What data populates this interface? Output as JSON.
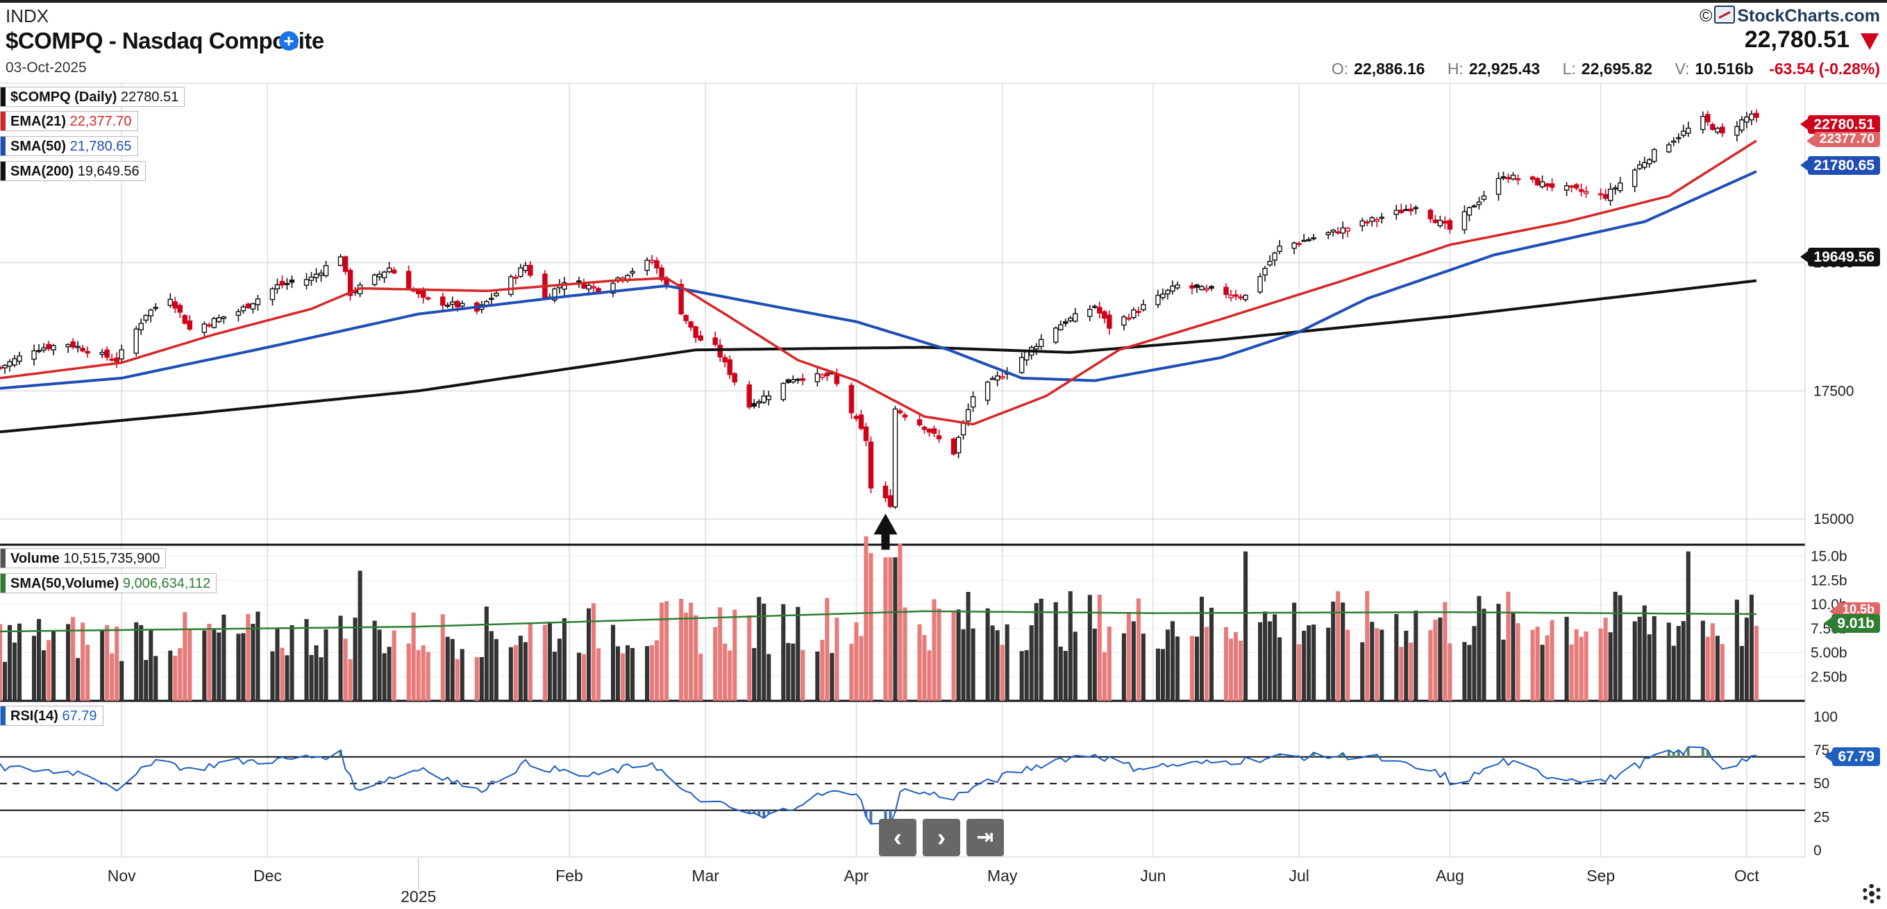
{
  "header": {
    "exchange": "INDX",
    "title": "$COMPQ - Nasdaq Composite",
    "date": "03-Oct-2025",
    "brand": "StockCharts.com",
    "copyright": "©",
    "last_price": "22,780.51",
    "ohlc": {
      "o_label": "O:",
      "o": "22,886.16",
      "h_label": "H:",
      "h": "22,925.43",
      "l_label": "L:",
      "l": "22,695.82",
      "v_label": "V:",
      "v": "10.516b",
      "change": "-63.54 (-0.28%)"
    }
  },
  "colors": {
    "up": "#111111",
    "down": "#d0021b",
    "ema": "#d62728",
    "sma50": "#1f4fb5",
    "sma200": "#111111",
    "vol_up": "#333333",
    "vol_down": "#e87a7a",
    "vol_sma": "#2e7d32",
    "rsi": "#1f5fbf",
    "rsi_fill": "#5a8a6a"
  },
  "legends": {
    "price": [
      {
        "name": "$COMPQ (Daily)",
        "value": "22780.51",
        "color": "#111111"
      },
      {
        "name": "EMA(21)",
        "value": "22,377.70",
        "color": "#d62728"
      },
      {
        "name": "SMA(50)",
        "value": "21,780.65",
        "color": "#1f4fb5"
      },
      {
        "name": "SMA(200)",
        "value": "19,649.56",
        "color": "#111111"
      }
    ],
    "volume": [
      {
        "name": "Volume",
        "value": "10,515,735,900",
        "color": "#555555"
      },
      {
        "name": "SMA(50,Volume)",
        "value": "9,006,634,112",
        "color": "#2e7d32"
      }
    ],
    "rsi": [
      {
        "name": "RSI(14)",
        "value": "67.79",
        "color": "#1f5fbf"
      }
    ]
  },
  "price_tags": {
    "last": "22780.51",
    "ema": "22377.70",
    "sma50": "21780.65",
    "sma200": "19649.56",
    "volume": "10.5b",
    "vol_sma": "9.01b",
    "rsi": "67.79"
  },
  "nav_buttons": {
    "prev": "‹",
    "next": "›",
    "end": "⇥"
  },
  "chart_data": {
    "type": "candlestick",
    "title": "$COMPQ - Nasdaq Composite",
    "x_axis": {
      "months": [
        {
          "label": "Nov",
          "date": "2024-11-01"
        },
        {
          "label": "Dec",
          "date": "2024-12-01"
        },
        {
          "label": "Feb",
          "date": "2025-02-01"
        },
        {
          "label": "Mar",
          "date": "2025-03-01"
        },
        {
          "label": "Apr",
          "date": "2025-04-01"
        },
        {
          "label": "May",
          "date": "2025-05-01"
        },
        {
          "label": "Jun",
          "date": "2025-06-01"
        },
        {
          "label": "Jul",
          "date": "2025-07-01"
        },
        {
          "label": "Aug",
          "date": "2025-08-01"
        },
        {
          "label": "Sep",
          "date": "2025-09-01"
        },
        {
          "label": "Oct",
          "date": "2025-10-01"
        }
      ],
      "year_label": "2025",
      "range": [
        "2024-10-07",
        "2025-10-13"
      ]
    },
    "price_axis": {
      "ticks": [
        15000,
        17500,
        20000
      ],
      "ylim": [
        14500,
        23500
      ]
    },
    "volume_axis": {
      "ticks": [
        "2.50b",
        "5.00b",
        "7.50b",
        "10.0b",
        "12.5b",
        "15.0b"
      ],
      "values": [
        2.5,
        5,
        7.5,
        10,
        12.5,
        15
      ],
      "ylim": [
        0,
        16.2
      ]
    },
    "rsi_axis": {
      "ticks": [
        0,
        25,
        50,
        75,
        100
      ],
      "ylim": [
        -5,
        112
      ],
      "levels": [
        30,
        50,
        70
      ]
    },
    "annotation": {
      "type": "arrow-up",
      "date": "2025-04-07",
      "value": 14700
    },
    "price_anchors": [
      [
        "2024-10-07",
        17950
      ],
      [
        "2024-10-14",
        18320
      ],
      [
        "2024-10-21",
        18420
      ],
      [
        "2024-10-31",
        18100
      ],
      [
        "2024-11-06",
        19000
      ],
      [
        "2024-11-11",
        19330
      ],
      [
        "2024-11-15",
        18700
      ],
      [
        "2024-11-25",
        19050
      ],
      [
        "2024-12-03",
        19550
      ],
      [
        "2024-12-10",
        19700
      ],
      [
        "2024-12-16",
        20150
      ],
      [
        "2024-12-18",
        19400
      ],
      [
        "2024-12-26",
        19900
      ],
      [
        "2025-01-02",
        19280
      ],
      [
        "2025-01-10",
        19150
      ],
      [
        "2025-01-13",
        19050
      ],
      [
        "2025-01-23",
        19950
      ],
      [
        "2025-01-27",
        19300
      ],
      [
        "2025-01-31",
        19650
      ],
      [
        "2025-02-07",
        19500
      ],
      [
        "2025-02-18",
        20050
      ],
      [
        "2025-02-21",
        19550
      ],
      [
        "2025-02-27",
        18550
      ],
      [
        "2025-03-03",
        18350
      ],
      [
        "2025-03-10",
        17200
      ],
      [
        "2025-03-19",
        17750
      ],
      [
        "2025-03-27",
        17800
      ],
      [
        "2025-04-03",
        16550
      ],
      [
        "2025-04-04",
        15600
      ],
      [
        "2025-04-08",
        15300
      ],
      [
        "2025-04-09",
        17150
      ],
      [
        "2025-04-15",
        16800
      ],
      [
        "2025-04-21",
        16300
      ],
      [
        "2025-04-25",
        17400
      ],
      [
        "2025-05-02",
        17900
      ],
      [
        "2025-05-12",
        18750
      ],
      [
        "2025-05-20",
        19150
      ],
      [
        "2025-05-23",
        18750
      ],
      [
        "2025-06-06",
        19550
      ],
      [
        "2025-06-13",
        19450
      ],
      [
        "2025-06-20",
        19350
      ],
      [
        "2025-06-27",
        20300
      ],
      [
        "2025-07-10",
        20650
      ],
      [
        "2025-07-25",
        21100
      ],
      [
        "2025-08-01",
        20650
      ],
      [
        "2025-08-12",
        21700
      ],
      [
        "2025-08-22",
        21500
      ],
      [
        "2025-09-02",
        21300
      ],
      [
        "2025-09-12",
        22150
      ],
      [
        "2025-09-22",
        22800
      ],
      [
        "2025-09-26",
        22500
      ],
      [
        "2025-10-02",
        22900
      ],
      [
        "2025-10-03",
        22780
      ]
    ],
    "series": [
      {
        "name": "EMA(21)",
        "points": [
          [
            "2024-10-07",
            17750
          ],
          [
            "2024-11-01",
            18050
          ],
          [
            "2024-11-20",
            18600
          ],
          [
            "2024-12-10",
            19100
          ],
          [
            "2024-12-20",
            19500
          ],
          [
            "2025-01-15",
            19450
          ],
          [
            "2025-02-10",
            19650
          ],
          [
            "2025-02-21",
            19700
          ],
          [
            "2025-03-05",
            19000
          ],
          [
            "2025-03-20",
            18100
          ],
          [
            "2025-04-01",
            17700
          ],
          [
            "2025-04-15",
            17000
          ],
          [
            "2025-04-25",
            16850
          ],
          [
            "2025-05-10",
            17400
          ],
          [
            "2025-05-25",
            18300
          ],
          [
            "2025-06-15",
            18900
          ],
          [
            "2025-07-10",
            19650
          ],
          [
            "2025-08-01",
            20350
          ],
          [
            "2025-08-25",
            20800
          ],
          [
            "2025-09-15",
            21300
          ],
          [
            "2025-10-03",
            22380
          ]
        ]
      },
      {
        "name": "SMA(50)",
        "points": [
          [
            "2024-10-07",
            17550
          ],
          [
            "2024-11-01",
            17750
          ],
          [
            "2024-12-01",
            18350
          ],
          [
            "2025-01-01",
            19000
          ],
          [
            "2025-02-01",
            19350
          ],
          [
            "2025-02-21",
            19550
          ],
          [
            "2025-03-15",
            19150
          ],
          [
            "2025-04-01",
            18850
          ],
          [
            "2025-04-20",
            18300
          ],
          [
            "2025-05-05",
            17750
          ],
          [
            "2025-05-20",
            17700
          ],
          [
            "2025-06-15",
            18150
          ],
          [
            "2025-07-01",
            18650
          ],
          [
            "2025-07-15",
            19300
          ],
          [
            "2025-08-10",
            20150
          ],
          [
            "2025-09-10",
            20800
          ],
          [
            "2025-10-03",
            21780
          ]
        ]
      },
      {
        "name": "SMA(200)",
        "points": [
          [
            "2024-10-07",
            16700
          ],
          [
            "2024-11-15",
            17050
          ],
          [
            "2025-01-01",
            17500
          ],
          [
            "2025-02-27",
            18300
          ],
          [
            "2025-04-15",
            18350
          ],
          [
            "2025-05-15",
            18250
          ],
          [
            "2025-06-15",
            18500
          ],
          [
            "2025-08-01",
            18950
          ],
          [
            "2025-10-03",
            19650
          ]
        ]
      },
      {
        "name": "SMA(50,Volume)",
        "points": [
          [
            "2024-10-07",
            7.2
          ],
          [
            "2025-01-01",
            7.7
          ],
          [
            "2025-03-01",
            8.6
          ],
          [
            "2025-04-15",
            9.3
          ],
          [
            "2025-06-01",
            9.1
          ],
          [
            "2025-08-01",
            9.2
          ],
          [
            "2025-10-03",
            9.0
          ]
        ]
      },
      {
        "name": "RSI(14)",
        "points": [
          [
            "2024-10-07",
            62
          ],
          [
            "2024-10-25",
            58
          ],
          [
            "2024-11-01",
            45
          ],
          [
            "2024-11-08",
            70
          ],
          [
            "2024-11-15",
            60
          ],
          [
            "2024-11-22",
            66
          ],
          [
            "2024-12-05",
            68
          ],
          [
            "2024-12-16",
            72
          ],
          [
            "2024-12-19",
            46
          ],
          [
            "2025-01-02",
            62
          ],
          [
            "2025-01-13",
            44
          ],
          [
            "2025-01-23",
            65
          ],
          [
            "2025-02-05",
            55
          ],
          [
            "2025-02-18",
            66
          ],
          [
            "2025-02-25",
            42
          ],
          [
            "2025-03-05",
            33
          ],
          [
            "2025-03-13",
            24
          ],
          [
            "2025-03-25",
            42
          ],
          [
            "2025-04-01",
            44
          ],
          [
            "2025-04-04",
            20
          ],
          [
            "2025-04-08",
            18
          ],
          [
            "2025-04-10",
            45
          ],
          [
            "2025-04-21",
            40
          ],
          [
            "2025-05-01",
            55
          ],
          [
            "2025-05-12",
            68
          ],
          [
            "2025-05-20",
            72
          ],
          [
            "2025-05-28",
            62
          ],
          [
            "2025-06-15",
            66
          ],
          [
            "2025-06-27",
            70
          ],
          [
            "2025-07-15",
            71
          ],
          [
            "2025-07-31",
            56
          ],
          [
            "2025-08-01",
            47
          ],
          [
            "2025-08-12",
            67
          ],
          [
            "2025-08-22",
            55
          ],
          [
            "2025-09-02",
            52
          ],
          [
            "2025-09-12",
            70
          ],
          [
            "2025-09-22",
            77
          ],
          [
            "2025-09-26",
            62
          ],
          [
            "2025-10-02",
            70
          ],
          [
            "2025-10-03",
            68
          ]
        ]
      }
    ]
  }
}
